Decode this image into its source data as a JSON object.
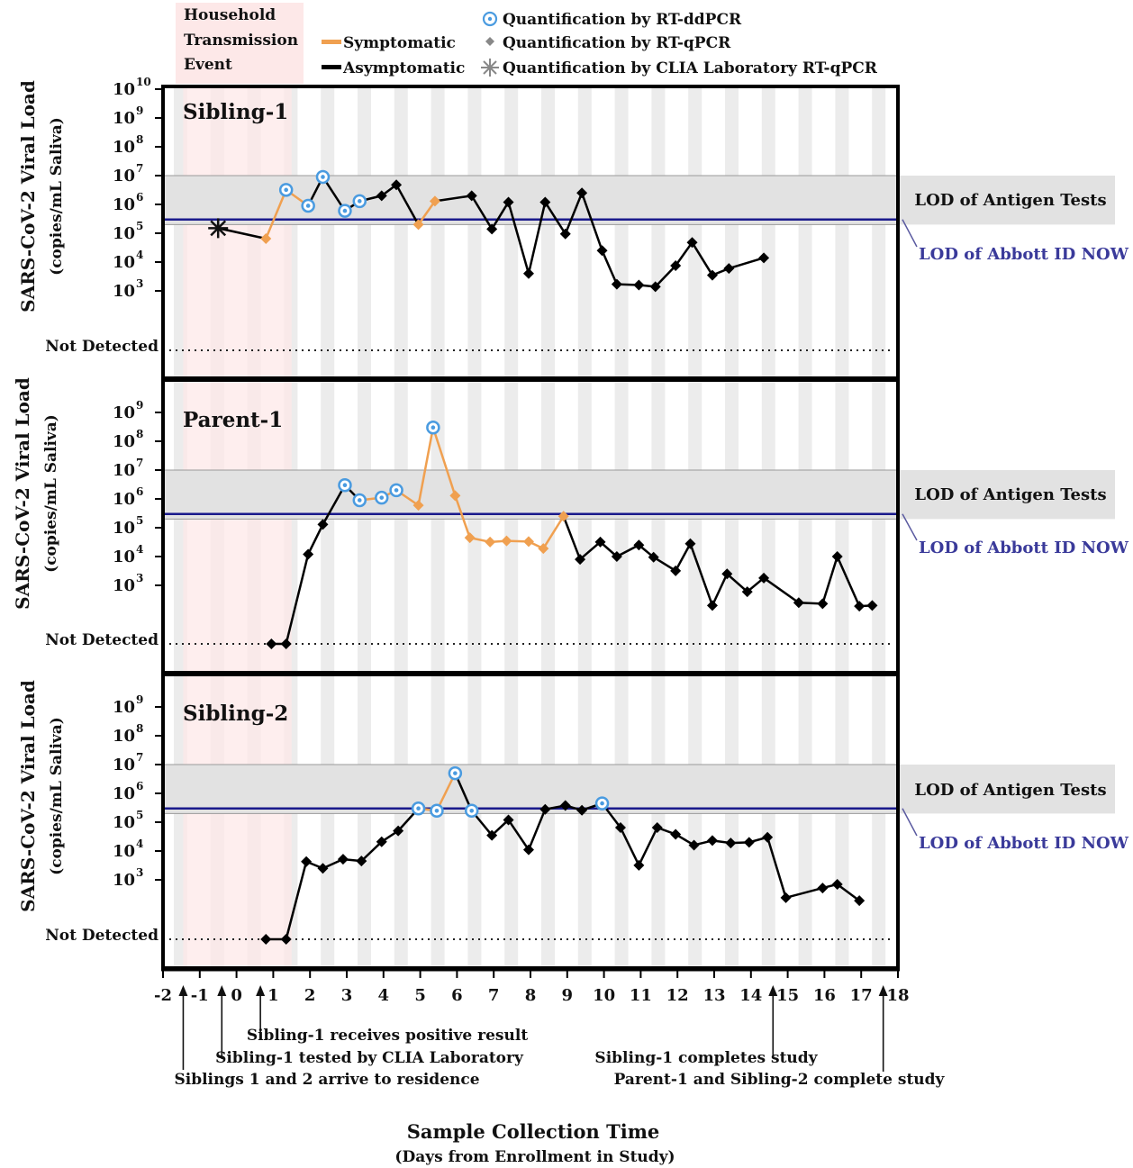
{
  "legend": {
    "household_event": [
      "Household",
      "Transmission",
      "Event"
    ],
    "symptomatic": "Symptomatic",
    "asymptomatic": "Asymptomatic",
    "ddpcr": "Quantification  by RT-ddPCR",
    "qpcr": "Quantification  by RT-qPCR",
    "clia": "Quantification  by CLIA Laboratory  RT-qPCR"
  },
  "axis": {
    "ylabel_main": "SARS-CoV-2  Viral Load",
    "ylabel_sub": "(copies/mL  Saliva)",
    "not_detected": "Not Detected",
    "xlabel_main": "Sample Collection Time",
    "xlabel_sub": "(Days from  Enrollment  in Study)",
    "x_ticks": [
      -2,
      -1,
      0,
      1,
      2,
      3,
      4,
      5,
      6,
      7,
      8,
      9,
      10,
      11,
      12,
      13,
      14,
      15,
      16,
      17,
      18
    ]
  },
  "reference": {
    "antigen_label": "LOD of Antigen Tests",
    "abbott_label": "LOD of Abbott  ID NOW"
  },
  "annotations": [
    {
      "text": "Sibling-1  receives positive result",
      "x": 0.65
    },
    {
      "text": "Sibling-1  tested by CLIA Laboratory",
      "x": -0.4
    },
    {
      "text": "Siblings  1 and 2 arrive to residence",
      "x": -1.45
    },
    {
      "text": "Sibling-1  completes study",
      "x": 14.6
    },
    {
      "text": "Parent-1  and  Sibling-2  complete  study",
      "x": 17.6
    }
  ],
  "colors": {
    "symptomatic": "#f0a050",
    "asymptomatic": "#000000",
    "ddpcr_ring": "#4a9be0",
    "abbott_line": "#1a1a8c",
    "abbott_label": "#3a3a9a",
    "antigen_band": "#e2e2e2",
    "household_band": "#fde8e8",
    "day_stripe": "#ececec"
  },
  "chart_data": [
    {
      "type": "line",
      "title": "Sibling-1",
      "yscale": "log",
      "yticks_exp": [
        3,
        4,
        5,
        6,
        7,
        8,
        9,
        10
      ],
      "xlim": [
        -2,
        18
      ],
      "antigen_lod_range": [
        200000,
        10000000
      ],
      "abbott_lod": 300000,
      "clia_point": {
        "x": -0.5,
        "y": 150000
      },
      "series": [
        {
          "x": -0.5,
          "y": 150000
        },
        {
          "x": 0.8,
          "y": 65000,
          "s": 1
        },
        {
          "x": 1.35,
          "y": 3200000,
          "s": 1,
          "dd": 1
        },
        {
          "x": 1.95,
          "y": 900000,
          "s": 1,
          "dd": 1
        },
        {
          "x": 2.35,
          "y": 9000000,
          "dd": 1
        },
        {
          "x": 2.95,
          "y": 600000,
          "dd": 1
        },
        {
          "x": 3.35,
          "y": 1300000,
          "dd": 1
        },
        {
          "x": 3.95,
          "y": 2000000
        },
        {
          "x": 4.35,
          "y": 4800000
        },
        {
          "x": 4.95,
          "y": 200000,
          "s": 1
        },
        {
          "x": 5.4,
          "y": 1300000,
          "s": 1
        },
        {
          "x": 6.4,
          "y": 2000000
        },
        {
          "x": 6.95,
          "y": 140000
        },
        {
          "x": 7.4,
          "y": 1200000
        },
        {
          "x": 7.95,
          "y": 4000
        },
        {
          "x": 8.4,
          "y": 1200000
        },
        {
          "x": 8.95,
          "y": 95000
        },
        {
          "x": 9.4,
          "y": 2500000
        },
        {
          "x": 9.95,
          "y": 25000
        },
        {
          "x": 10.35,
          "y": 1700
        },
        {
          "x": 10.95,
          "y": 1600
        },
        {
          "x": 11.4,
          "y": 1400
        },
        {
          "x": 11.95,
          "y": 7500
        },
        {
          "x": 12.4,
          "y": 48000
        },
        {
          "x": 12.95,
          "y": 3500
        },
        {
          "x": 13.4,
          "y": 6000
        },
        {
          "x": 14.35,
          "y": 14000
        }
      ]
    },
    {
      "type": "line",
      "title": "Parent-1",
      "yscale": "log",
      "yticks_exp": [
        3,
        4,
        5,
        6,
        7,
        8,
        9
      ],
      "xlim": [
        -2,
        18
      ],
      "antigen_lod_range": [
        200000,
        10000000
      ],
      "abbott_lod": 300000,
      "series": [
        {
          "x": 0.95,
          "nd": 1
        },
        {
          "x": 1.35,
          "nd": 1
        },
        {
          "x": 1.95,
          "y": 12000
        },
        {
          "x": 2.35,
          "y": 130000
        },
        {
          "x": 2.95,
          "y": 3000000,
          "dd": 1
        },
        {
          "x": 3.35,
          "y": 900000,
          "s": 1,
          "dd": 1
        },
        {
          "x": 3.95,
          "y": 1100000,
          "s": 1,
          "dd": 1
        },
        {
          "x": 4.35,
          "y": 2000000,
          "s": 1,
          "dd": 1
        },
        {
          "x": 4.95,
          "y": 600000,
          "s": 1
        },
        {
          "x": 5.35,
          "y": 300000000,
          "s": 1,
          "dd": 1
        },
        {
          "x": 5.95,
          "y": 1300000,
          "s": 1
        },
        {
          "x": 6.35,
          "y": 45000,
          "s": 1
        },
        {
          "x": 6.9,
          "y": 32000,
          "s": 1
        },
        {
          "x": 7.35,
          "y": 35000,
          "s": 1
        },
        {
          "x": 7.95,
          "y": 33000,
          "s": 1
        },
        {
          "x": 8.35,
          "y": 19000,
          "s": 1
        },
        {
          "x": 8.9,
          "y": 250000,
          "s": 1
        },
        {
          "x": 9.35,
          "y": 8000
        },
        {
          "x": 9.9,
          "y": 32000
        },
        {
          "x": 10.35,
          "y": 10000
        },
        {
          "x": 10.95,
          "y": 25000
        },
        {
          "x": 11.35,
          "y": 9500
        },
        {
          "x": 11.95,
          "y": 3200
        },
        {
          "x": 12.35,
          "y": 28000
        },
        {
          "x": 12.95,
          "y": 200
        },
        {
          "x": 13.35,
          "y": 2500
        },
        {
          "x": 13.9,
          "y": 600
        },
        {
          "x": 14.35,
          "y": 1800
        },
        {
          "x": 15.3,
          "y": 250
        },
        {
          "x": 15.95,
          "y": 230
        },
        {
          "x": 16.35,
          "y": 10000
        },
        {
          "x": 16.95,
          "y": 190
        },
        {
          "x": 17.3,
          "y": 200
        }
      ]
    },
    {
      "type": "line",
      "title": "Sibling-2",
      "yscale": "log",
      "yticks_exp": [
        3,
        4,
        5,
        6,
        7,
        8,
        9
      ],
      "xlim": [
        -2,
        18
      ],
      "antigen_lod_range": [
        200000,
        10000000
      ],
      "abbott_lod": 300000,
      "series": [
        {
          "x": 0.8,
          "nd": 1
        },
        {
          "x": 1.35,
          "nd": 1
        },
        {
          "x": 1.9,
          "y": 4300
        },
        {
          "x": 2.35,
          "y": 2500
        },
        {
          "x": 2.9,
          "y": 5200
        },
        {
          "x": 3.4,
          "y": 4500
        },
        {
          "x": 3.95,
          "y": 21000
        },
        {
          "x": 4.4,
          "y": 50000
        },
        {
          "x": 4.95,
          "y": 300000,
          "s": 1,
          "dd": 1
        },
        {
          "x": 5.45,
          "y": 250000,
          "s": 1,
          "dd": 1
        },
        {
          "x": 5.95,
          "y": 5000000,
          "s": 1,
          "dd": 1
        },
        {
          "x": 6.4,
          "y": 250000,
          "dd": 1
        },
        {
          "x": 6.95,
          "y": 35000
        },
        {
          "x": 7.4,
          "y": 120000
        },
        {
          "x": 7.95,
          "y": 11000
        },
        {
          "x": 8.4,
          "y": 280000
        },
        {
          "x": 8.95,
          "y": 380000
        },
        {
          "x": 9.4,
          "y": 260000
        },
        {
          "x": 9.95,
          "y": 450000,
          "dd": 1
        },
        {
          "x": 10.45,
          "y": 65000
        },
        {
          "x": 10.95,
          "y": 3200
        },
        {
          "x": 11.45,
          "y": 65000
        },
        {
          "x": 11.95,
          "y": 38000
        },
        {
          "x": 12.45,
          "y": 16000
        },
        {
          "x": 12.95,
          "y": 23000
        },
        {
          "x": 13.45,
          "y": 19000
        },
        {
          "x": 13.95,
          "y": 20000
        },
        {
          "x": 14.45,
          "y": 30000
        },
        {
          "x": 14.95,
          "y": 240
        },
        {
          "x": 15.95,
          "y": 520
        },
        {
          "x": 16.35,
          "y": 700
        },
        {
          "x": 16.95,
          "y": 190
        }
      ]
    }
  ]
}
